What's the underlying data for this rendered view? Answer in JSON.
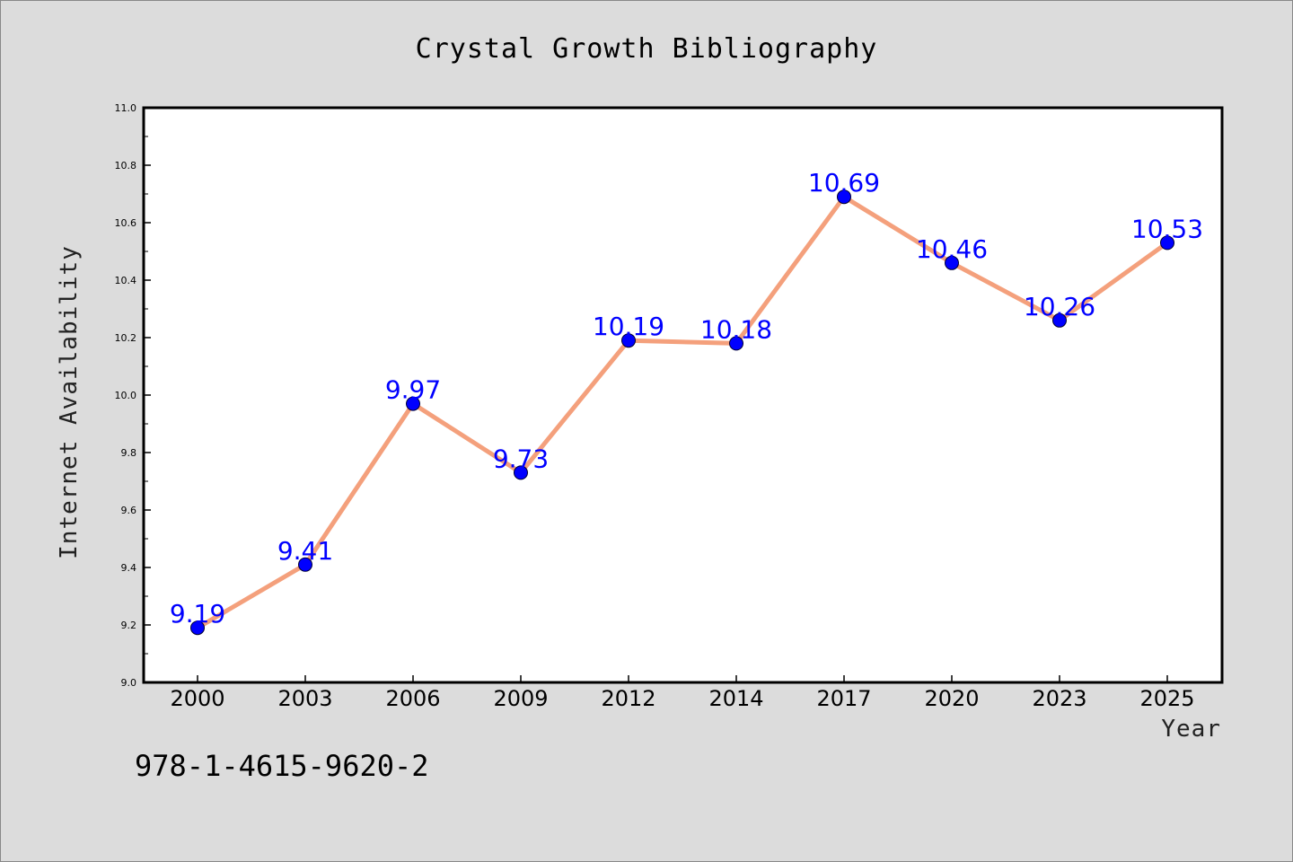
{
  "chart_data": {
    "type": "line",
    "title": "Crystal Growth Bibliography",
    "xlabel": "Year",
    "ylabel": "Internet Availability",
    "categories": [
      "2000",
      "2003",
      "2006",
      "2009",
      "2012",
      "2014",
      "2017",
      "2020",
      "2023",
      "2025"
    ],
    "series": [
      {
        "values": [
          9.19,
          9.41,
          9.97,
          9.73,
          10.19,
          10.18,
          10.69,
          10.46,
          10.26,
          10.53
        ],
        "labels": [
          "9.19",
          "9.41",
          "9.97",
          "9.73",
          "10.19",
          "10.18",
          "10.69",
          "10.46",
          "10.26",
          "10.53"
        ]
      }
    ],
    "ylim": [
      9.0,
      11.0
    ],
    "yticks": [
      "9.0",
      "9.2",
      "9.4",
      "9.6",
      "9.8",
      "10.0",
      "10.2",
      "10.4",
      "10.6",
      "10.8",
      "11.0"
    ],
    "grid": false,
    "colors": {
      "line": "#f4a07c",
      "marker": "#0000ff",
      "data_label": "#0000ff",
      "background": "#dcdcdc",
      "plot_area": "#ffffff"
    }
  },
  "footnote": "978-1-4615-9620-2"
}
